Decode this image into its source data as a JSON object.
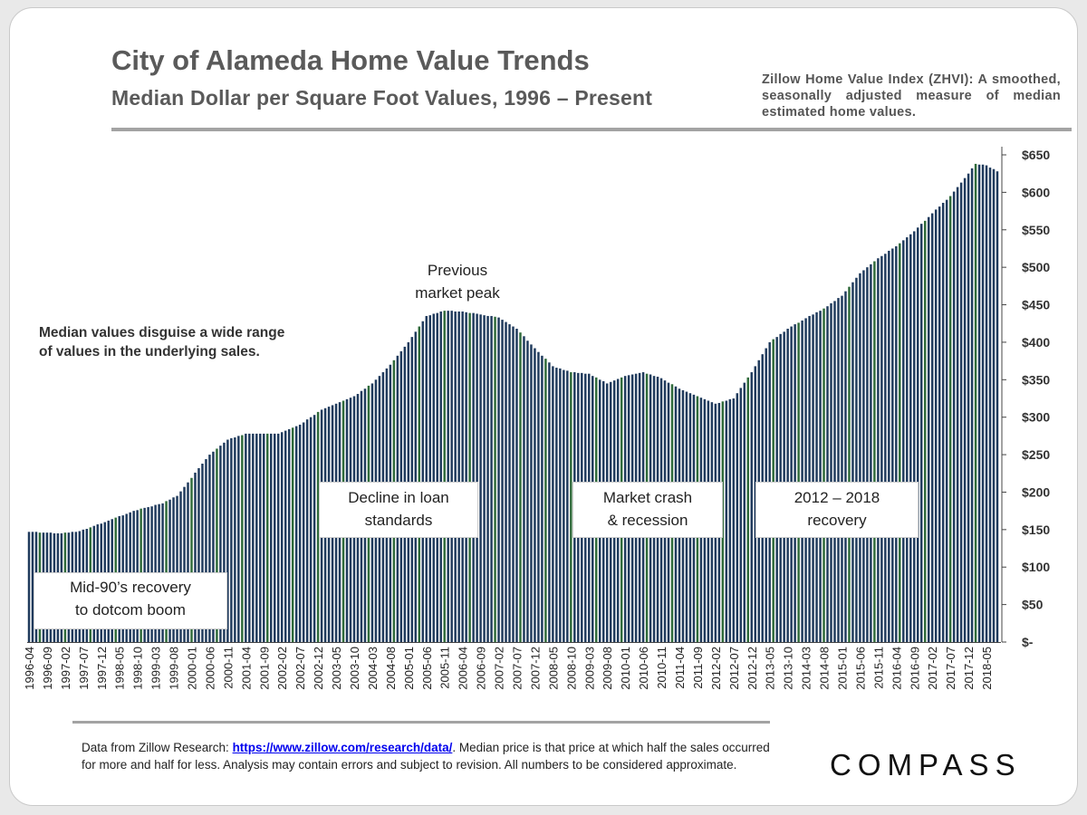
{
  "header": {
    "title": "City of Alameda Home Value Trends",
    "subtitle": "Median Dollar per Square Foot Values, 1996 – Present",
    "zhvi_note": "Zillow Home Value Index (ZHVI): A smoothed, seasonally adjusted measure of median estimated home values."
  },
  "annotations": {
    "side_note_line1": "Median values disguise a wide range",
    "side_note_line2": "of values in the underlying sales.",
    "peak_line1": "Previous",
    "peak_line2": "market peak",
    "box1_line1": "Mid-90’s recovery",
    "box1_line2": "to dotcom boom",
    "box2_line1": "Decline in loan",
    "box2_line2": "standards",
    "box3_line1": "Market crash",
    "box3_line2": "& recession",
    "box4_line1": "2012 – 2018",
    "box4_line2": "recovery"
  },
  "footer": {
    "text_before": "Data from Zillow Research: ",
    "link": "https://www.zillow.com/research/data/",
    "text_after": ". Median price is that price at which half the sales occurred for more and half for less. Analysis may contain errors and subject to revision. All numbers to be considered approximate."
  },
  "logo": {
    "text": "COMPASS"
  },
  "colors": {
    "bar_dark": "#1f3a5c",
    "bar_green": "#2f6a3a",
    "text_gray": "#5a5a5a",
    "rule": "#a3a3a3"
  },
  "chart_data": {
    "type": "bar",
    "title": "City of Alameda Home Value Trends",
    "subtitle": "Median Dollar per Square Foot Values, 1996 – Present",
    "ylabel": "",
    "xlabel": "",
    "ylim": [
      0,
      650
    ],
    "y_ticks": [
      "$-",
      "$50",
      "$100",
      "$150",
      "$200",
      "$250",
      "$300",
      "$350",
      "$400",
      "$450",
      "$500",
      "$550",
      "$600",
      "$650"
    ],
    "y_tick_values": [
      0,
      50,
      100,
      150,
      200,
      250,
      300,
      350,
      400,
      450,
      500,
      550,
      600,
      650
    ],
    "x_start": "1996-04",
    "x_tick_labels": [
      "1996-04",
      "1996-09",
      "1997-02",
      "1997-07",
      "1997-12",
      "1998-05",
      "1998-10",
      "1999-03",
      "1999-08",
      "2000-01",
      "2000-06",
      "2000-11",
      "2001-04",
      "2001-09",
      "2002-02",
      "2002-07",
      "2002-12",
      "2003-05",
      "2003-10",
      "2004-03",
      "2004-08",
      "2005-01",
      "2005-06",
      "2005-11",
      "2006-04",
      "2006-09",
      "2007-02",
      "2007-07",
      "2007-12",
      "2008-05",
      "2008-10",
      "2009-03",
      "2009-08",
      "2010-01",
      "2010-06",
      "2010-11",
      "2011-04",
      "2011-09",
      "2012-02",
      "2012-07",
      "2012-12",
      "2013-05",
      "2013-10",
      "2014-03",
      "2014-08",
      "2015-01",
      "2015-06",
      "2015-11",
      "2016-04",
      "2016-09",
      "2017-02",
      "2017-07",
      "2017-12",
      "2018-05"
    ],
    "anchors": [
      [
        "1996-04",
        147
      ],
      [
        "1997-01",
        145
      ],
      [
        "1997-06",
        148
      ],
      [
        "1998-01",
        160
      ],
      [
        "1998-09",
        175
      ],
      [
        "1999-05",
        185
      ],
      [
        "1999-09",
        195
      ],
      [
        "2000-06",
        250
      ],
      [
        "2000-11",
        270
      ],
      [
        "2001-04",
        278
      ],
      [
        "2002-01",
        278
      ],
      [
        "2002-07",
        290
      ],
      [
        "2003-01",
        310
      ],
      [
        "2003-10",
        328
      ],
      [
        "2004-03",
        345
      ],
      [
        "2004-08",
        370
      ],
      [
        "2005-01",
        400
      ],
      [
        "2005-06",
        435
      ],
      [
        "2005-11",
        442
      ],
      [
        "2006-04",
        441
      ],
      [
        "2006-09",
        437
      ],
      [
        "2007-02",
        433
      ],
      [
        "2007-07",
        418
      ],
      [
        "2007-12",
        392
      ],
      [
        "2008-05",
        368
      ],
      [
        "2008-10",
        360
      ],
      [
        "2009-03",
        358
      ],
      [
        "2009-08",
        345
      ],
      [
        "2010-01",
        355
      ],
      [
        "2010-06",
        360
      ],
      [
        "2010-11",
        352
      ],
      [
        "2011-04",
        338
      ],
      [
        "2011-09",
        328
      ],
      [
        "2012-02",
        318
      ],
      [
        "2012-07",
        325
      ],
      [
        "2012-12",
        360
      ],
      [
        "2013-05",
        400
      ],
      [
        "2013-10",
        418
      ],
      [
        "2014-03",
        432
      ],
      [
        "2014-08",
        445
      ],
      [
        "2015-01",
        462
      ],
      [
        "2015-06",
        492
      ],
      [
        "2015-11",
        512
      ],
      [
        "2016-04",
        528
      ],
      [
        "2016-09",
        548
      ],
      [
        "2017-02",
        572
      ],
      [
        "2017-07",
        595
      ],
      [
        "2017-12",
        625
      ],
      [
        "2018-02",
        638
      ],
      [
        "2018-05",
        636
      ],
      [
        "2018-08",
        628
      ]
    ],
    "grid": false,
    "legend": "none"
  }
}
